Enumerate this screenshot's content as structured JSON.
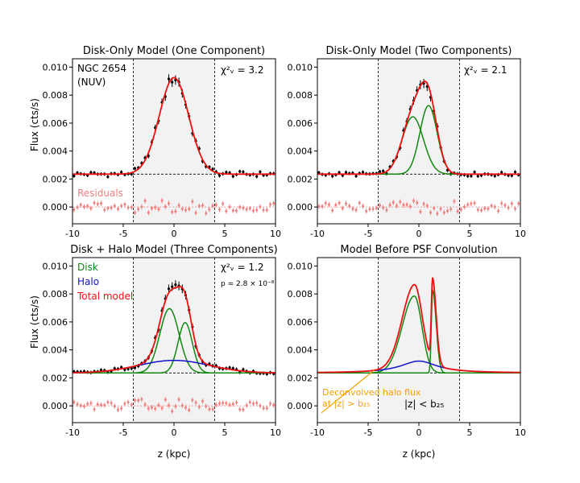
{
  "figure": {
    "ylabel": "Flux (cts/s)",
    "xlabel": "z (kpc)"
  },
  "chart_data": [
    {
      "type": "line",
      "title": "Disk-Only Model (One Component)",
      "xlim": [
        -10,
        10
      ],
      "ylim": [
        -0.0012,
        0.0106
      ],
      "xticks": [
        -10,
        -5,
        0,
        5,
        10
      ],
      "yticks": [
        0.0,
        0.002,
        0.004,
        0.006,
        0.008,
        0.01
      ],
      "xlabel": "",
      "ylabel": "Flux (cts/s)",
      "shaded_region": [
        -4,
        4
      ],
      "background_level": 0.00235,
      "annotations": {
        "galaxy": "NGC 2654",
        "band": "(NUV)",
        "chi2": "χ²ᵥ = 3.2",
        "residuals": "Residuals"
      },
      "model": {
        "background": 0.00235,
        "components": [
          {
            "amp": 0.0069,
            "center": 0.0,
            "width": 1.45
          }
        ]
      },
      "series": [
        {
          "name": "Data",
          "color": "#000000",
          "style": "errorbar"
        },
        {
          "name": "Total model",
          "color": "#ee1111",
          "style": "line"
        },
        {
          "name": "Residuals",
          "color": "#f08080",
          "style": "errorbar",
          "offset": 0.0
        }
      ]
    },
    {
      "type": "line",
      "title": "Disk-Only Model (Two Components)",
      "xlim": [
        -10,
        10
      ],
      "ylim": [
        -0.0012,
        0.0106
      ],
      "xticks": [
        -10,
        -5,
        0,
        5,
        10
      ],
      "yticks": [
        0.0,
        0.002,
        0.004,
        0.006,
        0.008,
        0.01
      ],
      "shaded_region": [
        -4,
        4
      ],
      "background_level": 0.00235,
      "annotations": {
        "chi2": "χ²ᵥ = 2.1"
      },
      "model": {
        "background": 0.00235,
        "components": [
          {
            "amp": 0.0041,
            "center": -0.6,
            "width": 1.05
          },
          {
            "amp": 0.0049,
            "center": 0.95,
            "width": 0.85
          }
        ]
      },
      "series": [
        {
          "name": "Data",
          "color": "#000000",
          "style": "errorbar"
        },
        {
          "name": "Disk",
          "color": "#118811",
          "style": "line"
        },
        {
          "name": "Total model",
          "color": "#ee1111",
          "style": "line"
        },
        {
          "name": "Residuals",
          "color": "#f08080",
          "style": "errorbar"
        }
      ]
    },
    {
      "type": "line",
      "title": "Disk + Halo Model (Three Components)",
      "xlim": [
        -10,
        10
      ],
      "ylim": [
        -0.0012,
        0.0106
      ],
      "xticks": [
        -10,
        -5,
        0,
        5,
        10
      ],
      "yticks": [
        0.0,
        0.002,
        0.004,
        0.006,
        0.008,
        0.01
      ],
      "shaded_region": [
        -4,
        4
      ],
      "background_level": 0.00235,
      "xlabel": "z (kpc)",
      "ylabel": "Flux (cts/s)",
      "annotations": {
        "chi2": "χ²ᵥ = 1.2",
        "p": "p = 2.8 × 10⁻⁸"
      },
      "legend": [
        {
          "label": "Disk",
          "color": "#118811"
        },
        {
          "label": "Halo",
          "color": "#1111cc"
        },
        {
          "label": "Total model",
          "color": "#ee1111"
        }
      ],
      "model": {
        "background": 0.00235,
        "components": [
          {
            "amp": 0.0046,
            "center": -0.45,
            "width": 0.95
          },
          {
            "amp": 0.0036,
            "center": 1.1,
            "width": 0.7
          }
        ],
        "halo": {
          "amp": 0.0009,
          "center": 0.0,
          "width": 3.5
        }
      },
      "series": [
        {
          "name": "Data",
          "color": "#000000",
          "style": "errorbar"
        },
        {
          "name": "Disk",
          "color": "#118811",
          "style": "line"
        },
        {
          "name": "Halo",
          "color": "#1111cc",
          "style": "line"
        },
        {
          "name": "Total model",
          "color": "#ee1111",
          "style": "line"
        },
        {
          "name": "Residuals",
          "color": "#f08080",
          "style": "errorbar"
        }
      ]
    },
    {
      "type": "line",
      "title": "Model Before PSF Convolution",
      "xlim": [
        -10,
        10
      ],
      "ylim": [
        -0.0012,
        0.0106
      ],
      "xticks": [
        -10,
        -5,
        0,
        5,
        10
      ],
      "yticks": [
        0.0,
        0.002,
        0.004,
        0.006,
        0.008,
        0.01
      ],
      "shaded_region": [
        -4,
        4
      ],
      "background_level": 0.00235,
      "xlabel": "z (kpc)",
      "annotations": {
        "halo_note_line1": "Deconvolved halo flux",
        "halo_note_line2": "at |z| > b₂₅",
        "inside": "|z| < b₂₅",
        "note_color": "#f5a000"
      },
      "model": {
        "background": 0.00235,
        "components": [
          {
            "amp": 0.0055,
            "center": -0.45,
            "width": 0.75,
            "skew": 1.6
          },
          {
            "amp": 0.0059,
            "center": 1.35,
            "width": 0.35,
            "skew": 0.35
          }
        ],
        "halo": {
          "amp": 0.00085,
          "center": 0.0,
          "width": 2.2
        }
      },
      "series": [
        {
          "name": "Disk",
          "color": "#118811",
          "style": "line"
        },
        {
          "name": "Halo",
          "color": "#1111cc",
          "style": "line"
        },
        {
          "name": "Total model",
          "color": "#ee1111",
          "style": "line"
        }
      ]
    }
  ]
}
